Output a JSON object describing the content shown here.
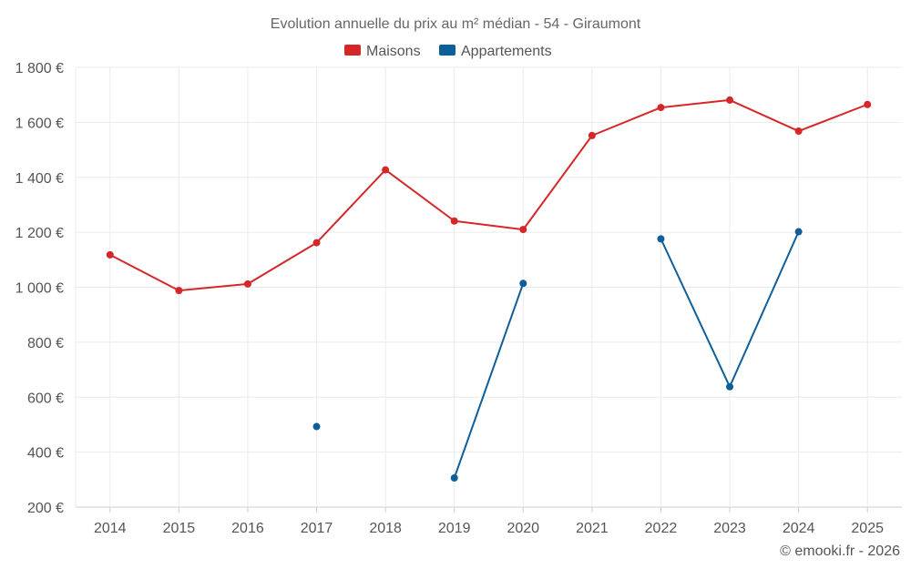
{
  "chart_data": {
    "type": "line",
    "title": "Evolution annuelle du prix au m² médian - 54 - Giraumont",
    "categories": [
      "2014",
      "2015",
      "2016",
      "2017",
      "2018",
      "2019",
      "2020",
      "2021",
      "2022",
      "2023",
      "2024",
      "2025"
    ],
    "series": [
      {
        "name": "Maisons",
        "color": "#d62728",
        "values": [
          1118,
          988,
          1012,
          1162,
          1427,
          1241,
          1210,
          1552,
          1654,
          1681,
          1568,
          1665
        ]
      },
      {
        "name": "Appartements",
        "color": "#0e5f99",
        "values": [
          null,
          null,
          null,
          493,
          null,
          306,
          1014,
          null,
          1176,
          638,
          1202,
          null
        ]
      }
    ],
    "ylim": [
      200,
      1800
    ],
    "yticks": [
      200,
      400,
      600,
      800,
      1000,
      1200,
      1400,
      1600,
      1800
    ],
    "ytick_labels": [
      "200 €",
      "400 €",
      "600 €",
      "800 €",
      "1 000 €",
      "1 200 €",
      "1 400 €",
      "1 600 €",
      "1 800 €"
    ],
    "legend_position": "top-center",
    "grid": true
  },
  "credit": "© emooki.fr - 2026"
}
